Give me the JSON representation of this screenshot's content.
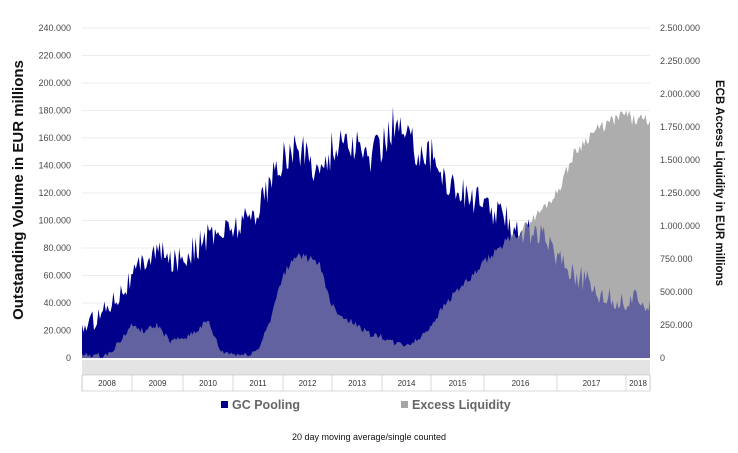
{
  "chart_data": {
    "type": "area",
    "title": "",
    "ylabel_left": "Outstanding Volume in EUR millions",
    "ylabel_right": "ECB Access Liquidity in EUR millions",
    "footnote": "20 day moving average/single counted",
    "x_years": [
      "2008",
      "2009",
      "2010",
      "2011",
      "2012",
      "2013",
      "2014",
      "2015",
      "2016",
      "2017",
      "2018"
    ],
    "ylim_left": [
      0,
      240000
    ],
    "ylim_right": [
      0,
      2500000
    ],
    "yticks_left": [
      "0",
      "20.000",
      "40.000",
      "60.000",
      "80.000",
      "100.000",
      "120.000",
      "140.000",
      "160.000",
      "180.000",
      "200.000",
      "220.000",
      "240.000"
    ],
    "yticks_right": [
      "0",
      "250.000",
      "500.000",
      "750.000",
      "1.000.000",
      "1.250.000",
      "1.500.000",
      "1.750.000",
      "2.000.000",
      "2.250.000",
      "2.500.000"
    ],
    "grid": true,
    "legend_position": "bottom",
    "series": [
      {
        "name": "GC Pooling",
        "axis": "left",
        "color": "#00008b",
        "points": [
          [
            "2008-01",
            22000
          ],
          [
            "2008-04",
            28000
          ],
          [
            "2008-07",
            38000
          ],
          [
            "2008-10",
            48000
          ],
          [
            "2009-01",
            58000
          ],
          [
            "2009-04",
            72000
          ],
          [
            "2009-07",
            78000
          ],
          [
            "2009-10",
            70000
          ],
          [
            "2010-01",
            74000
          ],
          [
            "2010-04",
            80000
          ],
          [
            "2010-07",
            88000
          ],
          [
            "2010-10",
            92000
          ],
          [
            "2011-01",
            95000
          ],
          [
            "2011-04",
            100000
          ],
          [
            "2011-07",
            110000
          ],
          [
            "2011-10",
            128000
          ],
          [
            "2012-01",
            145000
          ],
          [
            "2012-04",
            152000
          ],
          [
            "2012-07",
            148000
          ],
          [
            "2012-10",
            135000
          ],
          [
            "2013-01",
            152000
          ],
          [
            "2013-04",
            160000
          ],
          [
            "2013-07",
            152000
          ],
          [
            "2013-10",
            146000
          ],
          [
            "2014-01",
            155000
          ],
          [
            "2014-04",
            172000
          ],
          [
            "2014-07",
            160000
          ],
          [
            "2014-10",
            152000
          ],
          [
            "2015-01",
            148000
          ],
          [
            "2015-04",
            132000
          ],
          [
            "2015-07",
            122000
          ],
          [
            "2015-10",
            118000
          ],
          [
            "2016-01",
            110000
          ],
          [
            "2016-04",
            103000
          ],
          [
            "2016-07",
            94000
          ],
          [
            "2016-10",
            90000
          ],
          [
            "2017-01",
            76000
          ],
          [
            "2017-04",
            62000
          ],
          [
            "2017-07",
            52000
          ],
          [
            "2017-10",
            43000
          ],
          [
            "2018-01",
            40000
          ],
          [
            "2018-04",
            42000
          ]
        ]
      },
      {
        "name": "Excess Liquidity",
        "axis": "right",
        "color": "#a6a6a6",
        "points": [
          [
            "2008-01",
            20000
          ],
          [
            "2008-04",
            20000
          ],
          [
            "2008-07",
            20000
          ],
          [
            "2008-10",
            120000
          ],
          [
            "2009-01",
            250000
          ],
          [
            "2009-04",
            200000
          ],
          [
            "2009-07",
            250000
          ],
          [
            "2009-10",
            120000
          ],
          [
            "2010-01",
            150000
          ],
          [
            "2010-04",
            200000
          ],
          [
            "2010-07",
            280000
          ],
          [
            "2010-10",
            50000
          ],
          [
            "2011-01",
            30000
          ],
          [
            "2011-04",
            20000
          ],
          [
            "2011-07",
            60000
          ],
          [
            "2011-10",
            300000
          ],
          [
            "2012-01",
            620000
          ],
          [
            "2012-04",
            780000
          ],
          [
            "2012-07",
            760000
          ],
          [
            "2012-10",
            700000
          ],
          [
            "2013-01",
            400000
          ],
          [
            "2013-04",
            300000
          ],
          [
            "2013-07",
            250000
          ],
          [
            "2013-10",
            180000
          ],
          [
            "2014-01",
            160000
          ],
          [
            "2014-04",
            110000
          ],
          [
            "2014-07",
            100000
          ],
          [
            "2014-10",
            140000
          ],
          [
            "2015-01",
            250000
          ],
          [
            "2015-04",
            400000
          ],
          [
            "2015-07",
            520000
          ],
          [
            "2015-10",
            600000
          ],
          [
            "2016-01",
            720000
          ],
          [
            "2016-04",
            860000
          ],
          [
            "2016-07",
            960000
          ],
          [
            "2016-10",
            1100000
          ],
          [
            "2017-01",
            1250000
          ],
          [
            "2017-04",
            1550000
          ],
          [
            "2017-07",
            1700000
          ],
          [
            "2017-10",
            1780000
          ],
          [
            "2018-01",
            1850000
          ],
          [
            "2018-04",
            1800000
          ]
        ]
      }
    ]
  }
}
